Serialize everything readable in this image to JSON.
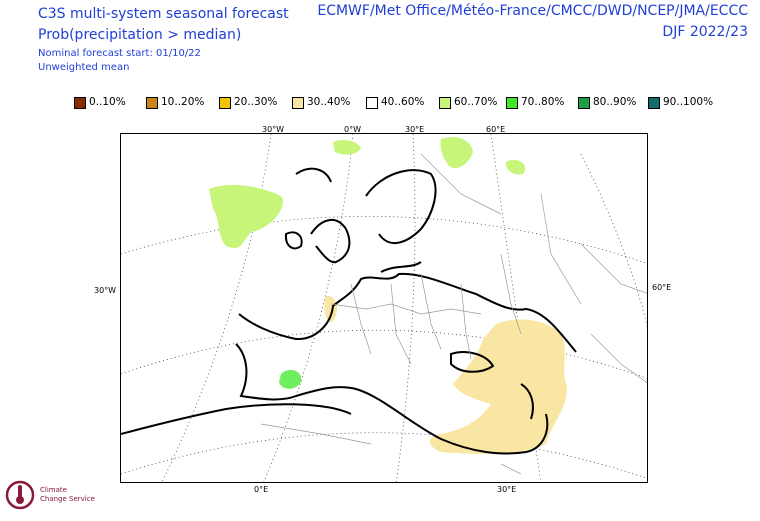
{
  "header": {
    "title": "C3S multi-system seasonal forecast",
    "subtitle": "Prob(precipitation > median)",
    "start": "Nominal forecast start: 01/10/22",
    "mean": "Unweighted mean",
    "centres": "ECMWF/Met Office/Météo-France/CMCC/DWD/NCEP/JMA/ECCC",
    "season": "DJF 2022/23"
  },
  "legend": [
    {
      "label": "0..10%",
      "color": "#8b2a00"
    },
    {
      "label": "10..20%",
      "color": "#c9861a"
    },
    {
      "label": "20..30%",
      "color": "#f5c400"
    },
    {
      "label": "30..40%",
      "color": "#fae6a3"
    },
    {
      "label": "40..60%",
      "color": "#ffffff"
    },
    {
      "label": "60..70%",
      "color": "#c6f57a"
    },
    {
      "label": "70..80%",
      "color": "#3fe82a"
    },
    {
      "label": "80..90%",
      "color": "#1f9e45"
    },
    {
      "label": "90..100%",
      "color": "#126e6e"
    }
  ],
  "graticule": {
    "top": [
      "30°W",
      "0°W",
      "30°E",
      "60°E"
    ],
    "left": "30°W",
    "right": "60°E",
    "bottom": [
      "0°E",
      "30°E"
    ]
  },
  "logo": {
    "line1": "Climate",
    "line2": "Change Service"
  }
}
